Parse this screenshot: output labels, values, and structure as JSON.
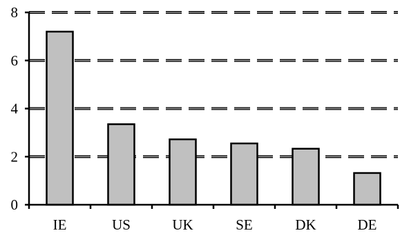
{
  "chart_data": {
    "type": "bar",
    "categories": [
      "IE",
      "US",
      "UK",
      "SE",
      "DK",
      "DE"
    ],
    "values": [
      7.2,
      3.35,
      2.72,
      2.55,
      2.33,
      1.32
    ],
    "title": "",
    "xlabel": "",
    "ylabel": "",
    "ylim": [
      0,
      8
    ],
    "yticks": [
      0,
      2,
      4,
      6,
      8
    ],
    "y_tick_labels": [
      "0",
      "2",
      "4",
      "6",
      "8"
    ],
    "grid": "horizontal-dashed",
    "legend": "none",
    "colors": {
      "bar_fill": "#c0c0c0",
      "bar_stroke": "#000000",
      "grid_dark": "#000000",
      "grid_light": "#9a9a9a",
      "axis": "#000000"
    }
  }
}
